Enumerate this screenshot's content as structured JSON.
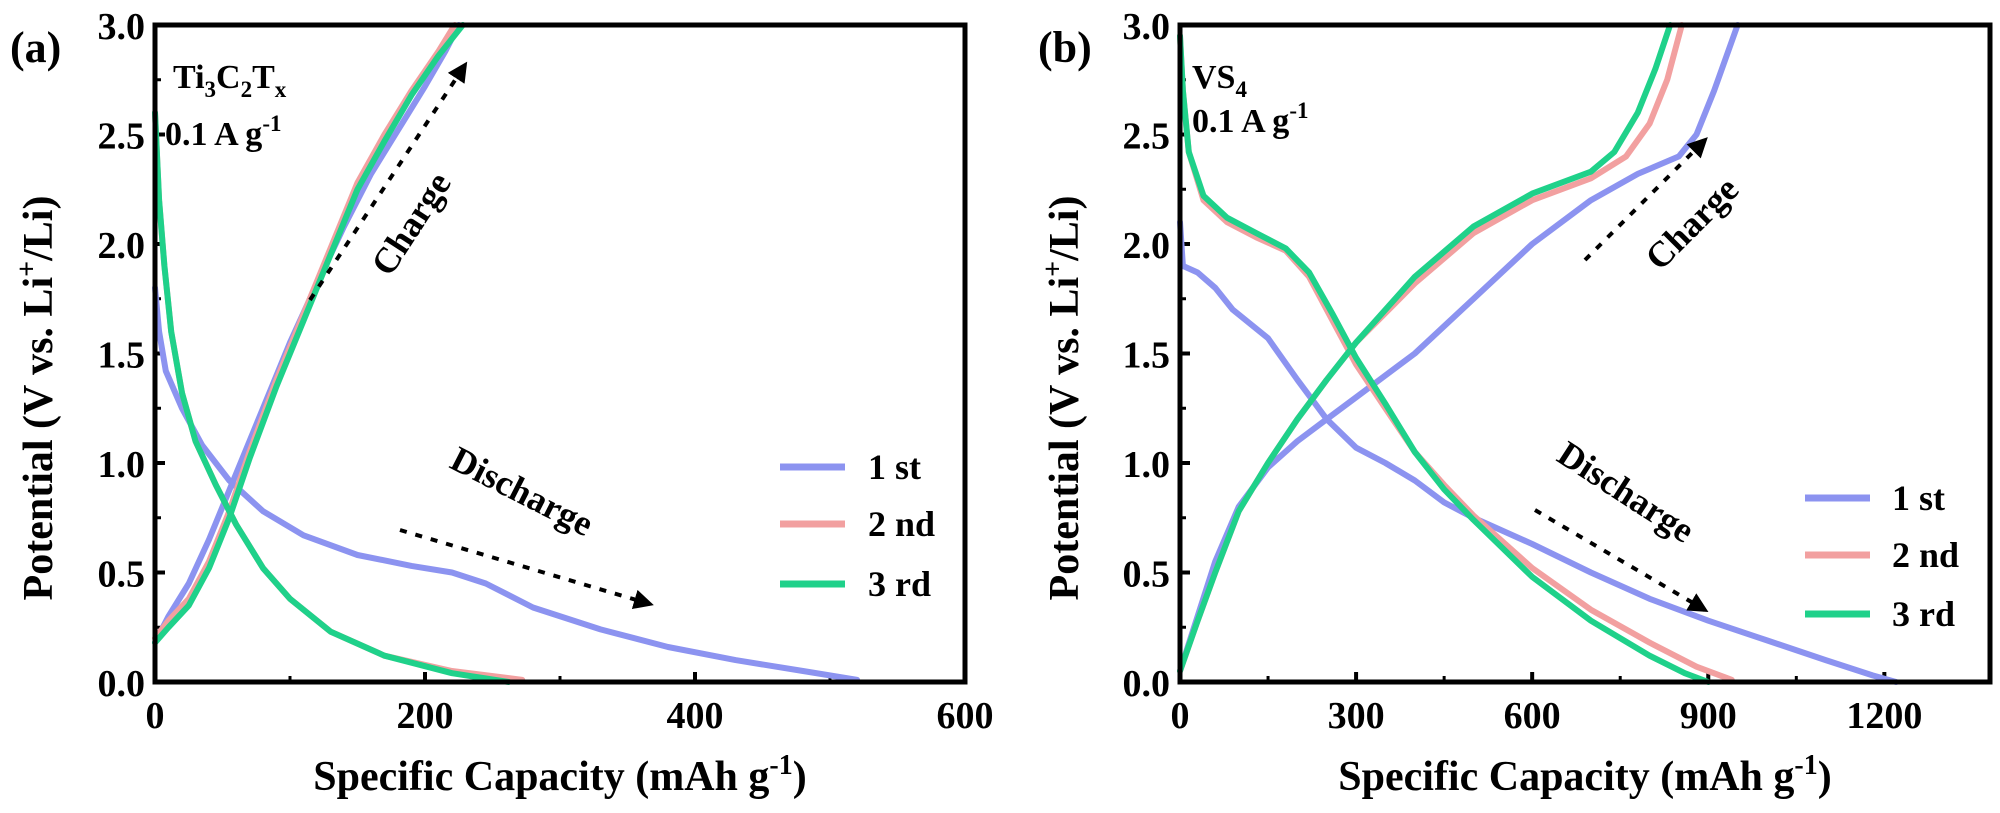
{
  "chart_data": [
    {
      "type": "line",
      "panel_label": "(a)",
      "sample": {
        "main": "Ti",
        "s1": "3",
        "m2": "C",
        "s2": "2",
        "m3": "T",
        "s3": "x"
      },
      "condition": {
        "base": "0.1 A g",
        "sup": "-1"
      },
      "xlabel": {
        "base": "Specific Capacity (mAh g",
        "sup": "-1",
        "tail": ")"
      },
      "ylabel": {
        "pre": "Potential (V vs. Li",
        "sup": "+",
        "post": "/Li)"
      },
      "xlim": [
        0,
        600
      ],
      "ylim": [
        0,
        3.0
      ],
      "xticks": [
        0,
        200,
        400,
        600
      ],
      "yticks": [
        0.0,
        0.5,
        1.0,
        1.5,
        2.0,
        2.5,
        3.0
      ],
      "xtick_labels": [
        "0",
        "200",
        "400",
        "600"
      ],
      "ytick_labels": [
        "0.0",
        "0.5",
        "1.0",
        "1.5",
        "2.0",
        "2.5",
        "3.0"
      ],
      "legend": [
        "1 st",
        "2 nd",
        "3 rd"
      ],
      "legend_position": "right-middle",
      "annotations": {
        "charge": "Charge",
        "discharge": "Discharge"
      },
      "series": [
        {
          "name": "1 st",
          "color": "#8c93f0",
          "discharge": [
            [
              0,
              1.8
            ],
            [
              3,
              1.6
            ],
            [
              8,
              1.42
            ],
            [
              20,
              1.25
            ],
            [
              35,
              1.08
            ],
            [
              55,
              0.92
            ],
            [
              80,
              0.78
            ],
            [
              110,
              0.67
            ],
            [
              150,
              0.58
            ],
            [
              190,
              0.53
            ],
            [
              220,
              0.5
            ],
            [
              245,
              0.45
            ],
            [
              280,
              0.34
            ],
            [
              330,
              0.24
            ],
            [
              380,
              0.16
            ],
            [
              430,
              0.1
            ],
            [
              480,
              0.05
            ],
            [
              520,
              0.01
            ]
          ],
          "charge": [
            [
              0,
              0.18
            ],
            [
              10,
              0.3
            ],
            [
              25,
              0.45
            ],
            [
              40,
              0.65
            ],
            [
              60,
              0.95
            ],
            [
              80,
              1.25
            ],
            [
              100,
              1.55
            ],
            [
              120,
              1.82
            ],
            [
              140,
              2.08
            ],
            [
              160,
              2.32
            ],
            [
              180,
              2.52
            ],
            [
              200,
              2.72
            ],
            [
              215,
              2.88
            ],
            [
              225,
              3.0
            ]
          ]
        },
        {
          "name": "2 nd",
          "color": "#f2a0a0",
          "discharge": [
            [
              0,
              2.6
            ],
            [
              3,
              2.2
            ],
            [
              7,
              1.9
            ],
            [
              12,
              1.6
            ],
            [
              20,
              1.32
            ],
            [
              30,
              1.1
            ],
            [
              45,
              0.9
            ],
            [
              60,
              0.72
            ],
            [
              80,
              0.52
            ],
            [
              100,
              0.38
            ],
            [
              130,
              0.23
            ],
            [
              170,
              0.12
            ],
            [
              220,
              0.05
            ],
            [
              272,
              0.01
            ]
          ],
          "charge": [
            [
              0,
              0.2
            ],
            [
              10,
              0.28
            ],
            [
              25,
              0.38
            ],
            [
              40,
              0.55
            ],
            [
              55,
              0.78
            ],
            [
              70,
              1.05
            ],
            [
              90,
              1.38
            ],
            [
              110,
              1.68
            ],
            [
              130,
              1.98
            ],
            [
              150,
              2.28
            ],
            [
              170,
              2.5
            ],
            [
              190,
              2.7
            ],
            [
              210,
              2.88
            ],
            [
              222,
              3.0
            ]
          ]
        },
        {
          "name": "3 rd",
          "color": "#1fd18a",
          "discharge": [
            [
              0,
              2.6
            ],
            [
              3,
              2.2
            ],
            [
              7,
              1.9
            ],
            [
              12,
              1.6
            ],
            [
              20,
              1.32
            ],
            [
              30,
              1.1
            ],
            [
              45,
              0.9
            ],
            [
              60,
              0.72
            ],
            [
              80,
              0.52
            ],
            [
              100,
              0.38
            ],
            [
              130,
              0.23
            ],
            [
              170,
              0.12
            ],
            [
              220,
              0.04
            ],
            [
              262,
              0.0
            ]
          ],
          "charge": [
            [
              0,
              0.18
            ],
            [
              10,
              0.25
            ],
            [
              25,
              0.35
            ],
            [
              40,
              0.52
            ],
            [
              55,
              0.75
            ],
            [
              70,
              1.02
            ],
            [
              90,
              1.35
            ],
            [
              110,
              1.65
            ],
            [
              130,
              1.95
            ],
            [
              150,
              2.25
            ],
            [
              170,
              2.47
            ],
            [
              190,
              2.68
            ],
            [
              210,
              2.86
            ],
            [
              228,
              3.0
            ]
          ]
        }
      ]
    },
    {
      "type": "line",
      "panel_label": "(b)",
      "sample": {
        "main": "VS",
        "s1": "4"
      },
      "condition": {
        "base": "0.1 A g",
        "sup": "-1"
      },
      "xlabel": {
        "base": "Specific Capacity (mAh g",
        "sup": "-1",
        "tail": ")"
      },
      "ylabel": {
        "pre": "Potential (V vs. Li",
        "sup": "+",
        "post": "/Li)"
      },
      "xlim": [
        0,
        1380
      ],
      "ylim": [
        0,
        3.0
      ],
      "xticks": [
        0,
        300,
        600,
        900,
        1200
      ],
      "yticks": [
        0.0,
        0.5,
        1.0,
        1.5,
        2.0,
        2.5,
        3.0
      ],
      "xtick_labels": [
        "0",
        "300",
        "600",
        "900",
        "1200"
      ],
      "ytick_labels": [
        "0.0",
        "0.5",
        "1.0",
        "1.5",
        "2.0",
        "2.5",
        "3.0"
      ],
      "legend": [
        "1 st",
        "2 nd",
        "3 rd"
      ],
      "legend_position": "bottom-right",
      "annotations": {
        "charge": "Charge",
        "discharge": "Discharge"
      },
      "series": [
        {
          "name": "1 st",
          "color": "#8c93f0",
          "discharge": [
            [
              0,
              2.1
            ],
            [
              5,
              1.9
            ],
            [
              30,
              1.87
            ],
            [
              60,
              1.8
            ],
            [
              90,
              1.7
            ],
            [
              150,
              1.57
            ],
            [
              200,
              1.38
            ],
            [
              250,
              1.2
            ],
            [
              300,
              1.07
            ],
            [
              350,
              1.0
            ],
            [
              400,
              0.92
            ],
            [
              450,
              0.82
            ],
            [
              500,
              0.75
            ],
            [
              600,
              0.63
            ],
            [
              700,
              0.5
            ],
            [
              800,
              0.38
            ],
            [
              900,
              0.28
            ],
            [
              1000,
              0.19
            ],
            [
              1100,
              0.1
            ],
            [
              1180,
              0.03
            ],
            [
              1220,
              0.0
            ]
          ],
          "charge": [
            [
              0,
              0.05
            ],
            [
              30,
              0.3
            ],
            [
              60,
              0.55
            ],
            [
              100,
              0.8
            ],
            [
              150,
              0.98
            ],
            [
              200,
              1.1
            ],
            [
              250,
              1.2
            ],
            [
              300,
              1.3
            ],
            [
              400,
              1.5
            ],
            [
              500,
              1.75
            ],
            [
              600,
              2.0
            ],
            [
              700,
              2.2
            ],
            [
              780,
              2.32
            ],
            [
              850,
              2.4
            ],
            [
              880,
              2.5
            ],
            [
              910,
              2.7
            ],
            [
              950,
              3.0
            ]
          ]
        },
        {
          "name": "2 nd",
          "color": "#f2a0a0",
          "discharge": [
            [
              0,
              2.95
            ],
            [
              5,
              2.7
            ],
            [
              15,
              2.42
            ],
            [
              40,
              2.2
            ],
            [
              80,
              2.1
            ],
            [
              130,
              2.03
            ],
            [
              180,
              1.97
            ],
            [
              220,
              1.85
            ],
            [
              260,
              1.65
            ],
            [
              300,
              1.45
            ],
            [
              350,
              1.25
            ],
            [
              400,
              1.05
            ],
            [
              450,
              0.9
            ],
            [
              500,
              0.76
            ],
            [
              600,
              0.52
            ],
            [
              700,
              0.33
            ],
            [
              800,
              0.18
            ],
            [
              880,
              0.07
            ],
            [
              940,
              0.01
            ]
          ],
          "charge": [
            [
              0,
              0.05
            ],
            [
              30,
              0.28
            ],
            [
              60,
              0.5
            ],
            [
              100,
              0.78
            ],
            [
              150,
              1.0
            ],
            [
              200,
              1.2
            ],
            [
              250,
              1.38
            ],
            [
              300,
              1.55
            ],
            [
              400,
              1.82
            ],
            [
              500,
              2.05
            ],
            [
              600,
              2.2
            ],
            [
              700,
              2.3
            ],
            [
              760,
              2.4
            ],
            [
              800,
              2.55
            ],
            [
              830,
              2.75
            ],
            [
              855,
              3.0
            ]
          ]
        },
        {
          "name": "3 rd",
          "color": "#1fd18a",
          "discharge": [
            [
              0,
              2.95
            ],
            [
              5,
              2.7
            ],
            [
              15,
              2.42
            ],
            [
              40,
              2.22
            ],
            [
              80,
              2.12
            ],
            [
              130,
              2.05
            ],
            [
              180,
              1.98
            ],
            [
              220,
              1.87
            ],
            [
              260,
              1.68
            ],
            [
              300,
              1.48
            ],
            [
              350,
              1.27
            ],
            [
              400,
              1.05
            ],
            [
              450,
              0.88
            ],
            [
              500,
              0.74
            ],
            [
              600,
              0.48
            ],
            [
              700,
              0.28
            ],
            [
              800,
              0.12
            ],
            [
              860,
              0.04
            ],
            [
              900,
              0.0
            ]
          ],
          "charge": [
            [
              0,
              0.05
            ],
            [
              30,
              0.28
            ],
            [
              60,
              0.5
            ],
            [
              100,
              0.78
            ],
            [
              150,
              1.0
            ],
            [
              200,
              1.2
            ],
            [
              250,
              1.38
            ],
            [
              300,
              1.55
            ],
            [
              400,
              1.85
            ],
            [
              500,
              2.08
            ],
            [
              600,
              2.23
            ],
            [
              700,
              2.33
            ],
            [
              740,
              2.42
            ],
            [
              780,
              2.6
            ],
            [
              810,
              2.8
            ],
            [
              835,
              3.0
            ]
          ]
        }
      ]
    }
  ]
}
